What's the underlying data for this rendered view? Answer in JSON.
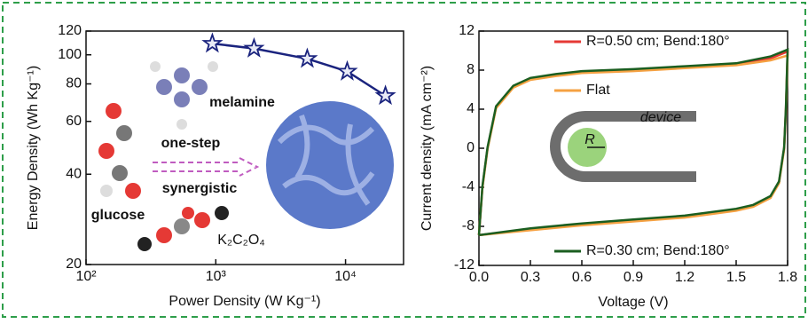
{
  "chart_data": [
    {
      "type": "line",
      "xscale": "log",
      "yscale": "log",
      "x_label": "Power Density (W Kg⁻¹)",
      "y_label": "Energy Density (Wh Kg⁻¹)",
      "xlim": [
        100,
        28000
      ],
      "ylim": [
        20,
        120
      ],
      "xticks": [
        {
          "value": 100,
          "label": "10²"
        },
        {
          "value": 1000,
          "label": "10³"
        },
        {
          "value": 10000,
          "label": "10⁴"
        }
      ],
      "yticks": [
        20,
        40,
        60,
        80,
        100,
        120
      ],
      "series": [
        {
          "color": "#1a237e",
          "marker": "star",
          "x": [
            940,
            1970,
            5070,
            10300,
            20300
          ],
          "values": [
            109,
            105,
            97,
            88,
            73
          ]
        }
      ],
      "annotations": [
        {
          "text": "melamine",
          "color": "#1a237e"
        },
        {
          "text": "one-step",
          "color": "#2e7d32"
        },
        {
          "text": "synergistic",
          "color": "#2e7d32"
        },
        {
          "text": "glucose",
          "color": "#e64a19"
        },
        {
          "text": "K₂C₂O₄",
          "color": "#f39c12"
        }
      ]
    },
    {
      "type": "line",
      "x_label": "Voltage (V)",
      "y_label": "Current density (mA cm⁻²)",
      "xlim": [
        0,
        1.8
      ],
      "ylim": [
        -12,
        12
      ],
      "xticks": [
        {
          "value": 0,
          "label": "0.0"
        },
        0.3,
        0.6,
        0.9,
        1.2,
        1.5,
        1.8
      ],
      "yticks": [
        -12,
        -8,
        -4,
        0,
        4,
        8,
        12
      ],
      "series": [
        {
          "name": "R=0.50 cm; Bend:180°",
          "color": "#e53935",
          "x": [
            0,
            0.02,
            0.05,
            0.1,
            0.2,
            0.3,
            0.45,
            0.6,
            0.9,
            1.2,
            1.5,
            1.7,
            1.8,
            1.79,
            1.78,
            1.75,
            1.7,
            1.6,
            1.5,
            1.2,
            0.9,
            0.6,
            0.3,
            0
          ],
          "values": [
            -8.9,
            -4,
            0,
            4.2,
            6.3,
            7.1,
            7.5,
            7.8,
            8.0,
            8.3,
            8.6,
            9.2,
            9.9,
            4,
            0,
            -3.5,
            -5,
            -5.9,
            -6.3,
            -7.0,
            -7.4,
            -7.8,
            -8.3,
            -8.9
          ]
        },
        {
          "name": "Flat",
          "color": "#f5a142",
          "x": [
            0,
            0.02,
            0.05,
            0.1,
            0.2,
            0.3,
            0.45,
            0.6,
            0.9,
            1.2,
            1.5,
            1.7,
            1.8,
            1.79,
            1.78,
            1.75,
            1.7,
            1.6,
            1.5,
            1.2,
            0.9,
            0.6,
            0.3,
            0
          ],
          "values": [
            -8.9,
            -4.1,
            -0.1,
            4.1,
            6.2,
            7.0,
            7.4,
            7.7,
            7.9,
            8.2,
            8.5,
            9.0,
            9.5,
            3.8,
            -0.1,
            -3.6,
            -5.1,
            -6.0,
            -6.4,
            -7.1,
            -7.5,
            -7.9,
            -8.4,
            -8.9
          ]
        },
        {
          "name": "R=0.30 cm; Bend:180°",
          "color": "#1b5e20",
          "x": [
            0,
            0.02,
            0.05,
            0.1,
            0.2,
            0.3,
            0.45,
            0.6,
            0.9,
            1.2,
            1.5,
            1.7,
            1.8,
            1.79,
            1.78,
            1.75,
            1.7,
            1.6,
            1.5,
            1.2,
            0.9,
            0.6,
            0.3,
            0
          ],
          "values": [
            -8.9,
            -3.9,
            0.1,
            4.3,
            6.4,
            7.2,
            7.6,
            7.9,
            8.1,
            8.4,
            8.7,
            9.4,
            10.1,
            4.2,
            0.1,
            -3.4,
            -4.9,
            -5.8,
            -6.2,
            -6.9,
            -7.3,
            -7.7,
            -8.2,
            -8.9
          ]
        }
      ],
      "annotations": [
        {
          "text": "device",
          "color": "#ffffff"
        },
        {
          "text": "R",
          "color": "#111111"
        }
      ]
    }
  ]
}
